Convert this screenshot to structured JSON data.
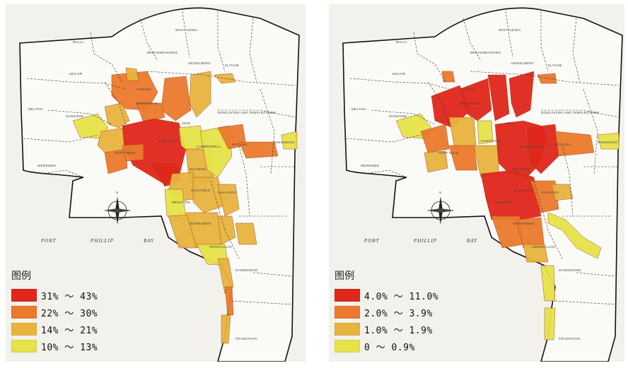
{
  "maps": [
    {
      "id": "left",
      "legend_title": "图例",
      "legend": [
        {
          "label": "31% ～ 43%",
          "color": "#e0271b"
        },
        {
          "label": "22% ～ 30%",
          "color": "#ec7a2d"
        },
        {
          "label": "14% ～ 21%",
          "color": "#e9b43e"
        },
        {
          "label": "10% ～ 13%",
          "color": "#e6e34a"
        }
      ]
    },
    {
      "id": "right",
      "legend_title": "图例",
      "legend": [
        {
          "label": "4.0% ～ 11.0%",
          "color": "#e0271b"
        },
        {
          "label": "2.0% ～ 3.9%",
          "color": "#ec7a2d"
        },
        {
          "label": "1.0% ～ 1.9%",
          "color": "#e9b43e"
        },
        {
          "label": "0 ～ 0.9%",
          "color": "#e6e34a"
        }
      ]
    }
  ],
  "place_labels": [
    "BULLA",
    "BROADMEADOWS",
    "WHITTLESEA",
    "KEILOR",
    "HEIDELBERG",
    "ELTHAM",
    "COBURG",
    "MELTON",
    "SUNSHINE",
    "BRUNSWICK",
    "DONCASTER AND TEMPLESTOWE",
    "KEW",
    "PORT MELB",
    "HAWTHORN",
    "CAMBERWELL",
    "BOX HILL",
    "RINGWOOD",
    "WERRIBEE",
    "MALVERN",
    "CAULFIELD",
    "OAKLEIGH",
    "BRIGHTON",
    "MOORABBIN",
    "MORDIALLOC",
    "DANDENONG",
    "FRANKSTON"
  ],
  "bay_labels": [
    "PORT",
    "PHILLIP",
    "BAY"
  ],
  "compass_letter": "N"
}
